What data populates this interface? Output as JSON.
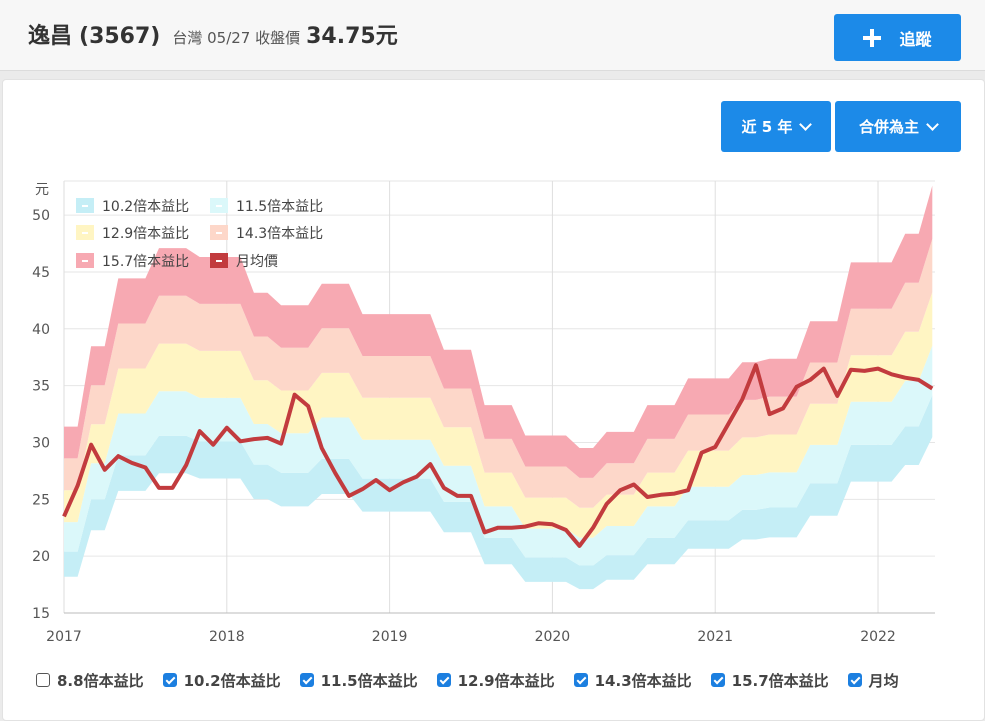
{
  "header": {
    "stock_name": "逸昌",
    "stock_code": "(3567)",
    "meta": "台灣 05/27 收盤價",
    "price": "34.75元",
    "follow_label": "追蹤"
  },
  "controls": {
    "range_label": "近 5 年",
    "basis_label": "合併為主"
  },
  "checkboxes": [
    {
      "label": "8.8倍本益比",
      "checked": false
    },
    {
      "label": "10.2倍本益比",
      "checked": true
    },
    {
      "label": "11.5倍本益比",
      "checked": true
    },
    {
      "label": "12.9倍本益比",
      "checked": true
    },
    {
      "label": "14.3倍本益比",
      "checked": true
    },
    {
      "label": "15.7倍本益比",
      "checked": true
    },
    {
      "label": "月均",
      "checked": true
    }
  ],
  "chart_data": {
    "type": "area",
    "ylabel": "元",
    "ylim": [
      15,
      53
    ],
    "yticks": [
      15,
      20,
      25,
      30,
      35,
      40,
      45,
      50
    ],
    "xlim": [
      2017.0,
      2022.35
    ],
    "xticks": [
      "2017",
      "2018",
      "2019",
      "2020",
      "2021",
      "2022"
    ],
    "grid": true,
    "legend_position": "top-left",
    "colors": {
      "band_10_2": "#c5eef6",
      "band_11_5": "#dbf8fa",
      "band_12_9": "#fff5c3",
      "band_14_3": "#fdd7c9",
      "band_15_7": "#f7a9b2",
      "monthly_avg": "#c23b3e"
    },
    "legend": [
      "10.2倍本益比",
      "11.5倍本益比",
      "12.9倍本益比",
      "14.3倍本益比",
      "15.7倍本益比",
      "月均價"
    ],
    "x": [
      "2017-01",
      "2017-02",
      "2017-03",
      "2017-04",
      "2017-05",
      "2017-06",
      "2017-07",
      "2017-08",
      "2017-09",
      "2017-10",
      "2017-11",
      "2017-12",
      "2018-01",
      "2018-02",
      "2018-03",
      "2018-04",
      "2018-05",
      "2018-06",
      "2018-07",
      "2018-08",
      "2018-09",
      "2018-10",
      "2018-11",
      "2018-12",
      "2019-01",
      "2019-02",
      "2019-03",
      "2019-04",
      "2019-05",
      "2019-06",
      "2019-07",
      "2019-08",
      "2019-09",
      "2019-10",
      "2019-11",
      "2019-12",
      "2020-01",
      "2020-02",
      "2020-03",
      "2020-04",
      "2020-05",
      "2020-06",
      "2020-07",
      "2020-08",
      "2020-09",
      "2020-10",
      "2020-11",
      "2020-12",
      "2021-01",
      "2021-02",
      "2021-03",
      "2021-04",
      "2021-05",
      "2021-06",
      "2021-07",
      "2021-08",
      "2021-09",
      "2021-10",
      "2021-11",
      "2021-12",
      "2022-01",
      "2022-02",
      "2022-03",
      "2022-04",
      "2022-05"
    ],
    "eps_levels": [
      2.0,
      2.0,
      2.45,
      2.45,
      2.83,
      2.83,
      2.83,
      3.0,
      3.0,
      3.0,
      2.95,
      2.95,
      2.95,
      2.95,
      2.75,
      2.75,
      2.68,
      2.68,
      2.68,
      2.8,
      2.8,
      2.8,
      2.63,
      2.63,
      2.63,
      2.63,
      2.63,
      2.63,
      2.43,
      2.43,
      2.43,
      2.12,
      2.12,
      2.12,
      1.95,
      1.95,
      1.95,
      1.95,
      1.88,
      1.88,
      1.97,
      1.97,
      1.97,
      2.12,
      2.12,
      2.12,
      2.27,
      2.27,
      2.27,
      2.27,
      2.36,
      2.36,
      2.38,
      2.38,
      2.38,
      2.59,
      2.59,
      2.59,
      2.92,
      2.92,
      2.92,
      2.92,
      3.08,
      3.08,
      3.35
    ],
    "series": [
      {
        "name": "10.2倍本益比",
        "multiple": 10.2
      },
      {
        "name": "11.5倍本益比",
        "multiple": 11.5
      },
      {
        "name": "12.9倍本益比",
        "multiple": 12.9
      },
      {
        "name": "14.3倍本益比",
        "multiple": 14.3
      },
      {
        "name": "15.7倍本益比",
        "multiple": 15.7
      },
      {
        "name": "月均價",
        "values": [
          23.5,
          26.2,
          29.8,
          27.6,
          28.8,
          28.2,
          27.8,
          26.0,
          26.0,
          28.0,
          31.0,
          29.8,
          31.3,
          30.1,
          30.3,
          30.4,
          29.9,
          34.2,
          33.2,
          29.5,
          27.3,
          25.3,
          25.9,
          26.7,
          25.8,
          26.5,
          27.0,
          28.1,
          26.0,
          25.3,
          25.3,
          22.1,
          22.5,
          22.5,
          22.6,
          22.9,
          22.8,
          22.3,
          20.9,
          22.5,
          24.6,
          25.8,
          26.3,
          25.2,
          25.4,
          25.5,
          25.8,
          29.1,
          29.6,
          31.7,
          33.8,
          36.8,
          32.5,
          33.0,
          34.9,
          35.5,
          36.5,
          34.1,
          36.4,
          36.3,
          36.5,
          36.0,
          35.7,
          35.5,
          34.75
        ]
      }
    ]
  }
}
